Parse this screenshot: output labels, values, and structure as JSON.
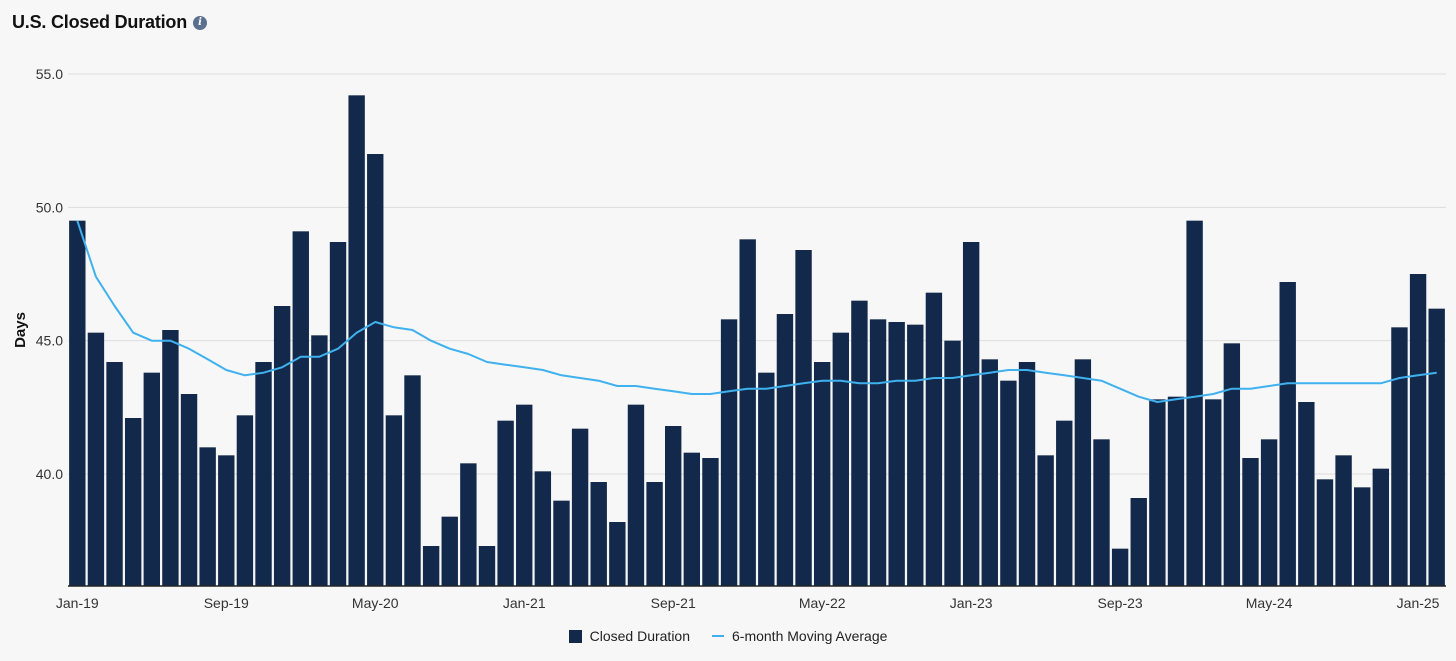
{
  "header": {
    "title": "U.S. Closed Duration",
    "info_icon": "info-icon"
  },
  "colors": {
    "bar": "#13294b",
    "line": "#3fb1ee",
    "grid": "#dcdcdc",
    "axis": "#222222"
  },
  "legend": {
    "bar_label": "Closed Duration",
    "line_label": "6-month Moving Average"
  },
  "chart_data": {
    "type": "bar",
    "title": "U.S. Closed Duration",
    "ylabel": "Days",
    "xlabel": "",
    "ylim": [
      35.8,
      55.0
    ],
    "yticks": [
      40.0,
      45.0,
      50.0,
      55.0
    ],
    "ytick_labels": [
      "40.0",
      "45.0",
      "50.0",
      "55.0"
    ],
    "x_tick_labels": [
      {
        "index": 0,
        "label": "Jan-19"
      },
      {
        "index": 8,
        "label": "Sep-19"
      },
      {
        "index": 16,
        "label": "May-20"
      },
      {
        "index": 24,
        "label": "Jan-21"
      },
      {
        "index": 32,
        "label": "Sep-21"
      },
      {
        "index": 40,
        "label": "May-22"
      },
      {
        "index": 48,
        "label": "Jan-23"
      },
      {
        "index": 56,
        "label": "Sep-23"
      },
      {
        "index": 64,
        "label": "May-24"
      },
      {
        "index": 72,
        "label": "Jan-25"
      }
    ],
    "legend_position": "bottom",
    "grid": true,
    "series": [
      {
        "name": "Closed Duration",
        "type": "bar",
        "values": [
          49.5,
          45.3,
          44.2,
          42.1,
          43.8,
          45.4,
          43.0,
          41.0,
          40.7,
          42.2,
          44.2,
          46.3,
          49.1,
          45.2,
          48.7,
          54.2,
          52.0,
          42.2,
          43.7,
          37.3,
          38.4,
          40.4,
          37.3,
          42.0,
          42.6,
          40.1,
          39.0,
          41.7,
          39.7,
          38.2,
          42.6,
          39.7,
          41.8,
          40.8,
          40.6,
          45.8,
          48.8,
          43.8,
          46.0,
          48.4,
          44.2,
          45.3,
          46.5,
          45.8,
          45.7,
          45.6,
          46.8,
          45.0,
          48.7,
          44.3,
          43.5,
          44.2,
          40.7,
          42.0,
          44.3,
          41.3,
          37.2,
          39.1,
          42.8,
          42.9,
          49.5,
          42.8,
          44.9,
          40.6,
          41.3,
          47.2,
          42.7,
          39.8,
          40.7,
          39.5,
          40.2,
          45.5,
          47.5,
          46.2
        ]
      },
      {
        "name": "6-month Moving Average",
        "type": "line",
        "values": [
          49.5,
          47.4,
          46.3,
          45.3,
          45.0,
          45.0,
          44.7,
          44.3,
          43.9,
          43.7,
          43.8,
          44.0,
          44.4,
          44.4,
          44.7,
          45.3,
          45.7,
          45.5,
          45.4,
          45.0,
          44.7,
          44.5,
          44.2,
          44.1,
          44.0,
          43.9,
          43.7,
          43.6,
          43.5,
          43.3,
          43.3,
          43.2,
          43.1,
          43.0,
          43.0,
          43.1,
          43.2,
          43.2,
          43.3,
          43.4,
          43.5,
          43.5,
          43.4,
          43.4,
          43.5,
          43.5,
          43.6,
          43.6,
          43.7,
          43.8,
          43.9,
          43.9,
          43.8,
          43.7,
          43.6,
          43.5,
          43.2,
          42.9,
          42.7,
          42.8,
          42.9,
          43.0,
          43.2,
          43.2,
          43.3,
          43.4,
          43.4,
          43.4,
          43.4,
          43.4,
          43.4,
          43.6,
          43.7,
          43.8
        ]
      }
    ]
  }
}
